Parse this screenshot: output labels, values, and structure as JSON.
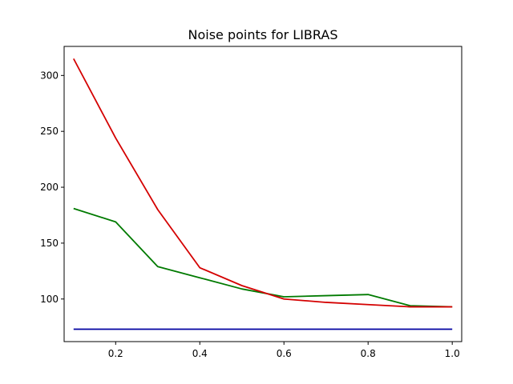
{
  "chart_data": {
    "type": "line",
    "title": "Noise points for LIBRAS",
    "xlabel": "",
    "ylabel": "",
    "xlim": [
      0.0775,
      1.0225
    ],
    "ylim": [
      61.9,
      326
    ],
    "xticks": [
      0.2,
      0.4,
      0.6,
      0.8,
      1.0
    ],
    "xtick_labels": [
      "0.2",
      "0.4",
      "0.6",
      "0.8",
      "1.0"
    ],
    "yticks": [
      100,
      150,
      200,
      250,
      300
    ],
    "ytick_labels": [
      "100",
      "150",
      "200",
      "250",
      "300"
    ],
    "grid": false,
    "legend": "none",
    "x": [
      0.1,
      0.2,
      0.3,
      0.4,
      0.5,
      0.6,
      0.7,
      0.8,
      0.9,
      1.0
    ],
    "series": [
      {
        "color": "#0000a0",
        "values": [
          73,
          73,
          73,
          73,
          73,
          73,
          73,
          73,
          73,
          73
        ]
      },
      {
        "color": "#007a00",
        "values": [
          181,
          169,
          129,
          119,
          109,
          102,
          103,
          104,
          94,
          93
        ]
      },
      {
        "color": "#d40000",
        "values": [
          315,
          244,
          180,
          128,
          112,
          100,
          97,
          95,
          93,
          93
        ]
      }
    ]
  }
}
